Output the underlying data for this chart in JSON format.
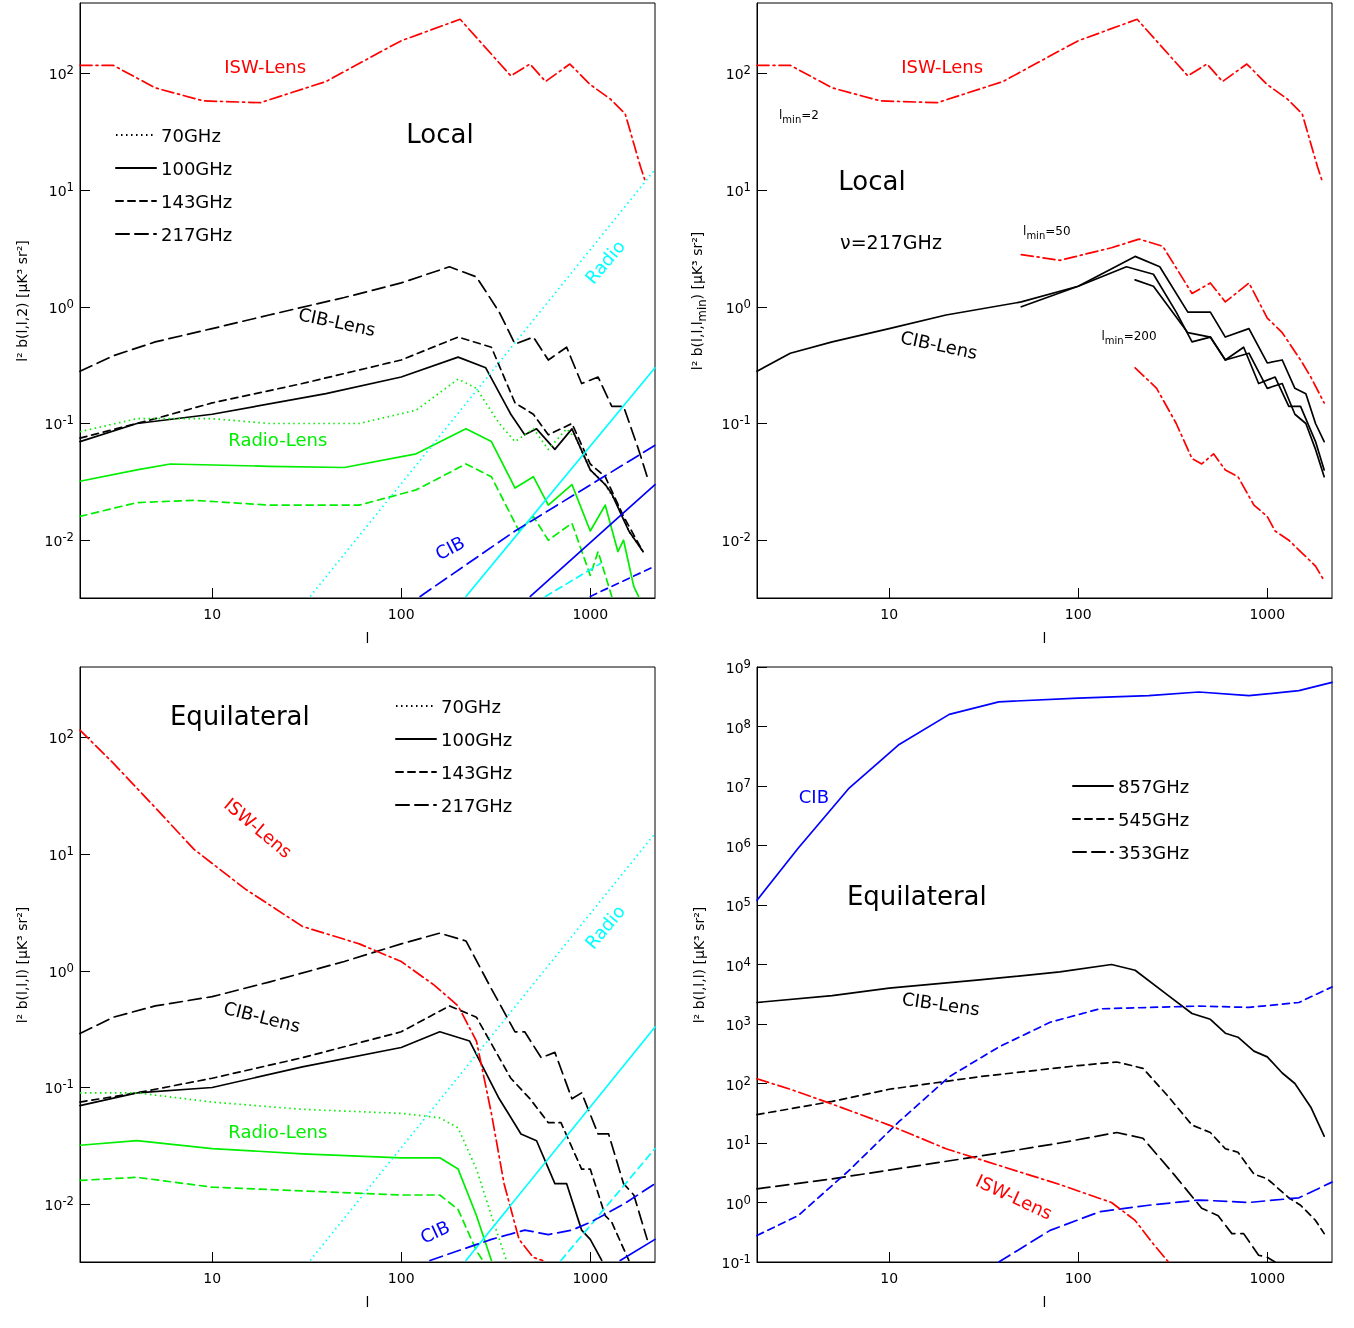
{
  "chart_data": [
    {
      "type": "line",
      "xlabel": "l",
      "ylabel": "l² b(l,l,2) [μK³ sr²]",
      "xlim": [
        2,
        2200
      ],
      "ylim": [
        0.0032,
        400
      ],
      "xticks": [
        10,
        100,
        1000
      ],
      "yticks": [
        {
          "value": 0.01,
          "label": "10$^{-2}$"
        },
        {
          "value": 0.1,
          "label": "10$^{-1}$"
        },
        {
          "value": 1,
          "label": "10$^{0}$"
        },
        {
          "value": 10,
          "label": "10$^{1}$"
        },
        {
          "value": 100,
          "label": "10$^{2}$"
        }
      ],
      "log": "xy",
      "legend": "top left",
      "series": [
        {
          "name": "70GHz",
          "color": "#000000",
          "line_style": "dotted",
          "x": [
            800,
            1000,
            1200,
            1400,
            1600,
            1900
          ],
          "values": [
            0.09,
            0.04,
            0.03,
            0.02,
            0.012,
            0.008
          ]
        },
        {
          "name": "100GHz",
          "color": "#000000",
          "line_style": "solid",
          "x": [
            2,
            4,
            10,
            40,
            100,
            200,
            280,
            380,
            450,
            520,
            650,
            800,
            1000,
            1200,
            1300,
            1500,
            1600,
            1900
          ],
          "values": [
            0.07,
            0.1,
            0.12,
            0.18,
            0.25,
            0.37,
            0.3,
            0.12,
            0.08,
            0.09,
            0.06,
            0.09,
            0.04,
            0.03,
            0.025,
            0.015,
            0.012,
            0.008
          ]
        },
        {
          "name": "143GHz",
          "color": "#000000",
          "line_style": "dashed",
          "x": [
            2,
            5,
            10,
            30,
            100,
            200,
            300,
            400,
            500,
            600,
            800,
            1000,
            1200,
            1500,
            1900
          ],
          "values": [
            0.075,
            0.11,
            0.15,
            0.22,
            0.35,
            0.55,
            0.45,
            0.15,
            0.12,
            0.08,
            0.1,
            0.045,
            0.035,
            0.016,
            0.008
          ]
        },
        {
          "name": "217GHz",
          "color": "#000000",
          "line_style": "longdashed",
          "x": [
            2,
            3,
            5,
            10,
            20,
            50,
            100,
            180,
            250,
            330,
            400,
            500,
            600,
            750,
            900,
            1100,
            1300,
            1500,
            1800,
            2000
          ],
          "values": [
            0.28,
            0.38,
            0.5,
            0.65,
            0.85,
            1.2,
            1.6,
            2.2,
            1.8,
            0.9,
            0.48,
            0.55,
            0.35,
            0.45,
            0.22,
            0.25,
            0.14,
            0.14,
            0.06,
            0.035
          ]
        },
        {
          "color": "#ff0000",
          "line_style": "dashdot",
          "x": [
            2,
            3,
            5,
            9,
            18,
            40,
            100,
            205,
            380,
            480,
            580,
            780,
            1000,
            1280,
            1530,
            1840,
            1950
          ],
          "values": [
            117,
            117,
            75,
            58,
            56,
            85,
            190,
            290,
            95,
            120,
            85,
            120,
            80,
            60,
            45,
            16,
            12
          ]
        },
        {
          "color": "#00ee00",
          "line_style": "dotted",
          "x": [
            2,
            4,
            10,
            20,
            60,
            120,
            200,
            250,
            330,
            400,
            500,
            600,
            750,
            800
          ],
          "values": [
            0.085,
            0.11,
            0.11,
            0.1,
            0.1,
            0.13,
            0.24,
            0.2,
            0.1,
            0.07,
            0.09,
            0.06,
            0.09,
            0.08
          ]
        },
        {
          "color": "#00ee00",
          "line_style": "solid",
          "x": [
            2,
            4,
            6,
            20,
            50,
            120,
            220,
            300,
            400,
            500,
            600,
            800,
            1000,
            1200,
            1400,
            1500,
            1700,
            1800
          ],
          "values": [
            0.032,
            0.04,
            0.045,
            0.043,
            0.042,
            0.055,
            0.09,
            0.07,
            0.028,
            0.035,
            0.02,
            0.03,
            0.012,
            0.02,
            0.008,
            0.01,
            0.004,
            0.0033
          ]
        },
        {
          "color": "#00ee00",
          "line_style": "dashed",
          "x": [
            2,
            4,
            8,
            20,
            60,
            120,
            220,
            300,
            420,
            500,
            600,
            800,
            1000,
            1100,
            1300
          ],
          "values": [
            0.016,
            0.021,
            0.022,
            0.02,
            0.02,
            0.027,
            0.045,
            0.035,
            0.012,
            0.016,
            0.01,
            0.014,
            0.005,
            0.008,
            0.0033
          ]
        },
        {
          "color": "#00ffff",
          "line_style": "dotted",
          "x": [
            33,
            2200
          ],
          "values": [
            0.0033,
            15
          ]
        },
        {
          "color": "#00ffff",
          "line_style": "solid",
          "x": [
            220,
            2200
          ],
          "values": [
            0.0033,
            0.3
          ]
        },
        {
          "color": "#00ffff",
          "line_style": "dashed",
          "x": [
            580,
            1130
          ],
          "values": [
            0.0033,
            0.0063
          ]
        },
        {
          "color": "#0000ff",
          "line_style": "longdashed",
          "x": [
            126,
            400,
            2200
          ],
          "values": [
            0.0033,
            0.012,
            0.065
          ]
        },
        {
          "color": "#0000ff",
          "line_style": "solid",
          "x": [
            482,
            2200
          ],
          "values": [
            0.0033,
            0.03
          ]
        },
        {
          "color": "#0000ff",
          "line_style": "dashed",
          "x": [
            1000,
            2200
          ],
          "values": [
            0.0033,
            0.006
          ]
        }
      ],
      "annotations": [
        "ISW-Lens",
        "Local",
        "CIB-Lens",
        "Radio-Lens",
        "Radio",
        "CIB"
      ]
    },
    {
      "type": "line",
      "xlabel": "l",
      "ylabel": "l² b(l,l,l$_{min}$) [μK³ sr²]",
      "xlim": [
        2,
        2200
      ],
      "ylim": [
        0.0032,
        400
      ],
      "xticks": [
        10,
        100,
        1000
      ],
      "yticks": [
        {
          "value": 0.01,
          "label": "10$^{-2}$"
        },
        {
          "value": 0.1,
          "label": "10$^{-1}$"
        },
        {
          "value": 1,
          "label": "10$^{0}$"
        },
        {
          "value": 10,
          "label": "10$^{1}$"
        },
        {
          "value": 100,
          "label": "10$^{2}$"
        }
      ],
      "log": "xy",
      "series": [
        {
          "color": "#ff0000",
          "line_style": "dashdot",
          "x": [
            2,
            3,
            5,
            9,
            18,
            40,
            100,
            205,
            380,
            480,
            580,
            780,
            1000,
            1280,
            1530,
            1840,
            1950
          ],
          "values": [
            117,
            117,
            75,
            58,
            56,
            85,
            190,
            290,
            95,
            120,
            85,
            120,
            80,
            60,
            45,
            16,
            12
          ]
        },
        {
          "color": "#ff0000",
          "line_style": "dashdot",
          "x": [
            50,
            80,
            150,
            210,
            280,
            400,
            500,
            600,
            800,
            1000,
            1200,
            1500,
            1700,
            2000
          ],
          "values": [
            2.8,
            2.5,
            3.2,
            3.8,
            3.3,
            1.3,
            1.6,
            1.1,
            1.6,
            0.8,
            0.6,
            0.35,
            0.25,
            0.15
          ]
        },
        {
          "color": "#ff0000",
          "line_style": "dashdot",
          "x": [
            200,
            260,
            330,
            400,
            450,
            520,
            600,
            700,
            850,
            1000,
            1100,
            1300,
            1500,
            1800,
            2000
          ],
          "values": [
            0.3,
            0.2,
            0.1,
            0.05,
            0.045,
            0.055,
            0.04,
            0.035,
            0.02,
            0.016,
            0.012,
            0.01,
            0.008,
            0.006,
            0.0045
          ]
        },
        {
          "color": "#000000",
          "line_style": "solid",
          "x": [
            2,
            3,
            5,
            10,
            20,
            50,
            100,
            180,
            250,
            330,
            400,
            500,
            600,
            750,
            900,
            1100,
            1300,
            1500,
            1800,
            2000
          ],
          "values": [
            0.28,
            0.4,
            0.5,
            0.65,
            0.85,
            1.1,
            1.5,
            2.2,
            1.9,
            0.9,
            0.5,
            0.55,
            0.35,
            0.45,
            0.22,
            0.25,
            0.14,
            0.14,
            0.07,
            0.04
          ]
        },
        {
          "color": "#000000",
          "line_style": "solid",
          "x": [
            50,
            100,
            200,
            270,
            380,
            500,
            600,
            800,
            1000,
            1200,
            1400,
            1600,
            1800,
            2000
          ],
          "values": [
            1.0,
            1.5,
            2.7,
            2.2,
            0.9,
            0.9,
            0.55,
            0.65,
            0.33,
            0.35,
            0.2,
            0.18,
            0.1,
            0.07
          ]
        },
        {
          "color": "#000000",
          "line_style": "solid",
          "x": [
            200,
            250,
            380,
            500,
            600,
            800,
            1000,
            1200,
            1400,
            1600,
            1800,
            2000
          ],
          "values": [
            1.7,
            1.5,
            0.6,
            0.55,
            0.35,
            0.4,
            0.2,
            0.22,
            0.12,
            0.1,
            0.06,
            0.035
          ]
        }
      ],
      "annotations": [
        "ISW-Lens",
        "l$_{min}$=2",
        "Local",
        "ν=217GHz",
        "l$_{min}$=50",
        "l$_{min}$=200",
        "CIB-Lens"
      ]
    },
    {
      "type": "line",
      "xlabel": "l",
      "ylabel": "l² b(l,l,l) [μK³ sr²]",
      "xlim": [
        2,
        2200
      ],
      "ylim": [
        0.0032,
        400
      ],
      "xticks": [
        10,
        100,
        1000
      ],
      "yticks": [
        {
          "value": 0.01,
          "label": "10$^{-2}$"
        },
        {
          "value": 0.1,
          "label": "10$^{-1}$"
        },
        {
          "value": 1,
          "label": "10$^{0}$"
        },
        {
          "value": 10,
          "label": "10$^{1}$"
        },
        {
          "value": 100,
          "label": "10$^{2}$"
        }
      ],
      "log": "xy",
      "legend": "top right",
      "series": [
        {
          "name": "70GHz",
          "color": "#000000",
          "line_style": "dotted"
        },
        {
          "name": "100GHz",
          "color": "#000000",
          "line_style": "solid",
          "x": [
            2,
            4,
            10,
            30,
            100,
            160,
            230,
            330,
            430,
            520,
            650,
            750,
            900,
            1000,
            1150
          ],
          "values": [
            0.07,
            0.09,
            0.1,
            0.15,
            0.22,
            0.3,
            0.25,
            0.08,
            0.04,
            0.035,
            0.015,
            0.015,
            0.006,
            0.005,
            0.0033
          ]
        },
        {
          "name": "143GHz",
          "color": "#000000",
          "line_style": "dashed",
          "x": [
            2,
            4,
            10,
            30,
            100,
            180,
            250,
            380,
            480,
            600,
            700,
            900,
            1000,
            1200,
            1300,
            1600
          ],
          "values": [
            0.075,
            0.09,
            0.12,
            0.18,
            0.3,
            0.5,
            0.4,
            0.12,
            0.08,
            0.05,
            0.05,
            0.02,
            0.02,
            0.008,
            0.007,
            0.0033
          ]
        },
        {
          "name": "217GHz",
          "color": "#000000",
          "line_style": "longdashed",
          "x": [
            2,
            3,
            5,
            10,
            20,
            50,
            100,
            160,
            220,
            300,
            400,
            450,
            550,
            650,
            800,
            900,
            1100,
            1250,
            1500,
            1700,
            2000
          ],
          "values": [
            0.29,
            0.4,
            0.5,
            0.6,
            0.8,
            1.2,
            1.7,
            2.1,
            1.8,
            0.7,
            0.3,
            0.3,
            0.18,
            0.2,
            0.08,
            0.09,
            0.04,
            0.04,
            0.015,
            0.012,
            0.005
          ]
        },
        {
          "color": "#ff0000",
          "line_style": "dashdot",
          "x": [
            2,
            3,
            5,
            8,
            15,
            30,
            60,
            100,
            150,
            200,
            250,
            300,
            350,
            420,
            500,
            560
          ],
          "values": [
            115,
            60,
            25,
            11,
            5,
            2.4,
            1.7,
            1.2,
            0.75,
            0.5,
            0.25,
            0.06,
            0.015,
            0.005,
            0.0035,
            0.0033
          ]
        },
        {
          "color": "#00ee00",
          "line_style": "dotted",
          "x": [
            2,
            4,
            10,
            30,
            100,
            160,
            200,
            250,
            300,
            360
          ],
          "values": [
            0.09,
            0.09,
            0.075,
            0.065,
            0.06,
            0.055,
            0.045,
            0.02,
            0.008,
            0.0033
          ]
        },
        {
          "color": "#00ee00",
          "line_style": "solid",
          "x": [
            2,
            4,
            10,
            30,
            100,
            160,
            200,
            250,
            300
          ],
          "values": [
            0.032,
            0.035,
            0.03,
            0.027,
            0.025,
            0.025,
            0.02,
            0.008,
            0.0033
          ]
        },
        {
          "color": "#00ee00",
          "line_style": "dashed",
          "x": [
            2,
            4,
            10,
            30,
            100,
            160,
            200,
            250,
            270
          ],
          "values": [
            0.016,
            0.017,
            0.014,
            0.013,
            0.012,
            0.012,
            0.009,
            0.004,
            0.0033
          ]
        },
        {
          "color": "#00ffff",
          "line_style": "dotted",
          "x": [
            33,
            2200
          ],
          "values": [
            0.0033,
            15
          ]
        },
        {
          "color": "#00ffff",
          "line_style": "solid",
          "x": [
            220,
            2200
          ],
          "values": [
            0.0033,
            0.33
          ]
        },
        {
          "color": "#00ffff",
          "line_style": "dashed",
          "x": [
            700,
            2200
          ],
          "values": [
            0.0033,
            0.03
          ]
        },
        {
          "color": "#0000ff",
          "line_style": "longdashed",
          "x": [
            142,
            300,
            450,
            600,
            800,
            1000,
            1500,
            2200
          ],
          "values": [
            0.0033,
            0.005,
            0.006,
            0.0055,
            0.006,
            0.007,
            0.01,
            0.015
          ]
        },
        {
          "color": "#0000ff",
          "line_style": "solid",
          "x": [
            1440,
            2200
          ],
          "values": [
            0.0033,
            0.005
          ]
        }
      ],
      "annotations": [
        "Equilateral",
        "ISW-Lens",
        "CIB-Lens",
        "Radio-Lens",
        "Radio",
        "CIB"
      ]
    },
    {
      "type": "line",
      "xlabel": "l",
      "ylabel": "l² b(l,l,l) [μK³ sr²]",
      "xlim": [
        2,
        2200
      ],
      "ylim": [
        0.1,
        1000000000
      ],
      "xticks": [
        10,
        100,
        1000
      ],
      "yticks": [
        {
          "value": 0.1,
          "label": "10$^{-1}$"
        },
        {
          "value": 1,
          "label": "10$^{0}$"
        },
        {
          "value": 10,
          "label": "10$^{1}$"
        },
        {
          "value": 100,
          "label": "10$^{2}$"
        },
        {
          "value": 1000,
          "label": "10$^{3}$"
        },
        {
          "value": 10000,
          "label": "10$^{4}$"
        },
        {
          "value": 100000,
          "label": "10$^{5}$"
        },
        {
          "value": 1000000,
          "label": "10$^{6}$"
        },
        {
          "value": 10000000,
          "label": "10$^{7}$"
        },
        {
          "value": 100000000,
          "label": "10$^{8}$"
        },
        {
          "value": 1000000000,
          "label": "10$^{9}$"
        }
      ],
      "log": "xy",
      "legend": "right",
      "series": [
        {
          "name": "857GHz",
          "color": "#000000",
          "line_style": "solid",
          "x": [
            2,
            5,
            10,
            30,
            80,
            150,
            200,
            300,
            400,
            500,
            600,
            700,
            850,
            1000,
            1200,
            1400,
            1700,
            2000
          ],
          "values": [
            2300,
            3000,
            4000,
            5500,
            7500,
            10000,
            8000,
            3000,
            1500,
            1200,
            700,
            600,
            350,
            280,
            150,
            100,
            40,
            13
          ]
        },
        {
          "name": "545GHz",
          "color": "#000000",
          "line_style": "dashed",
          "x": [
            2,
            5,
            10,
            30,
            100,
            160,
            220,
            300,
            400,
            500,
            600,
            700,
            850,
            1000,
            1300,
            1500,
            1800,
            2000
          ],
          "values": [
            30,
            50,
            80,
            130,
            200,
            230,
            180,
            60,
            20,
            15,
            8,
            7,
            3,
            2.5,
            1.2,
            0.9,
            0.5,
            0.3
          ]
        },
        {
          "name": "353GHz",
          "color": "#000000",
          "line_style": "longdashed",
          "x": [
            2,
            5,
            10,
            30,
            80,
            160,
            220,
            320,
            450,
            550,
            650,
            750,
            900,
            1000,
            1100
          ],
          "values": [
            1.7,
            2.5,
            3.5,
            6,
            10,
            15,
            12,
            3,
            0.8,
            0.6,
            0.3,
            0.3,
            0.13,
            0.12,
            0.1
          ]
        },
        {
          "color": "#0000ff",
          "line_style": "solid",
          "x": [
            2,
            3.3,
            6.1,
            11.3,
            20.8,
            38,
            100,
            236,
            435,
            800,
            1470,
            2200
          ],
          "values": [
            120000,
            900000,
            9000000,
            50000000,
            160000000,
            260000000,
            300000000,
            330000000,
            380000000,
            330000000,
            400000000,
            550000000
          ]
        },
        {
          "color": "#0000ff",
          "line_style": "dashed",
          "x": [
            2,
            3.3,
            6.1,
            11.3,
            20.8,
            38,
            71,
            130,
            435,
            800,
            1470,
            2200
          ],
          "values": [
            0.28,
            0.6,
            3.4,
            23,
            130,
            410,
            1070,
            1800,
            2000,
            1900,
            2300,
            4200
          ]
        },
        {
          "color": "#0000ff",
          "line_style": "longdashed",
          "x": [
            38,
            71,
            130,
            236,
            435,
            800,
            1470,
            2200
          ],
          "values": [
            0.1,
            0.34,
            0.7,
            0.9,
            1.1,
            1.0,
            1.2,
            2.2
          ]
        },
        {
          "color": "#ff0000",
          "line_style": "dashdot",
          "x": [
            2,
            3,
            5,
            10,
            20,
            40,
            80,
            150,
            200,
            250,
            300
          ],
          "values": [
            120,
            80,
            45,
            20,
            8,
            4,
            2,
            1,
            0.5,
            0.2,
            0.1
          ]
        }
      ],
      "annotations": [
        "CIB",
        "Equilateral",
        "CIB-Lens",
        "ISW-Lens"
      ]
    }
  ]
}
